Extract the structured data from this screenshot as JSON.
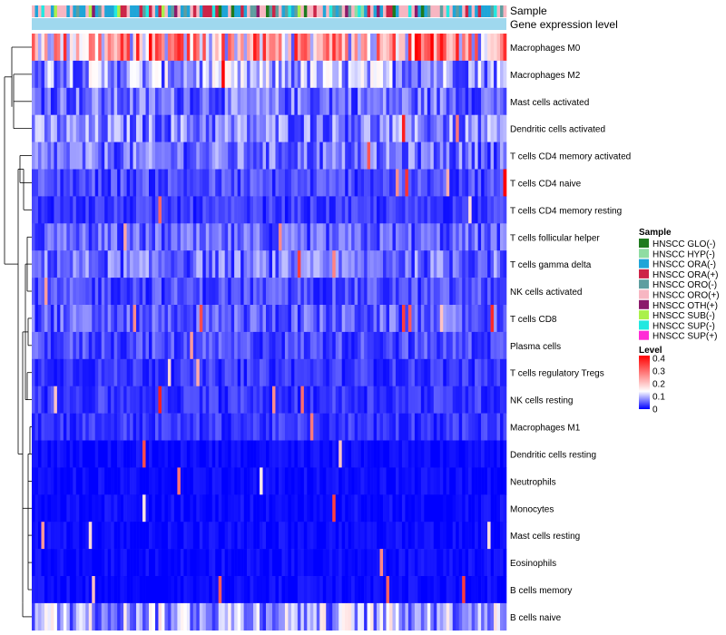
{
  "chart_data": {
    "type": "heatmap",
    "annotation_rows": [
      "Sample",
      "Gene expression level"
    ],
    "rows": [
      "Macrophages M0",
      "Macrophages M2",
      "Mast cells activated",
      "Dendritic cells activated",
      "T cells CD4 memory activated",
      "T cells CD4 naive",
      "T cells CD4 memory resting",
      "T cells follicular helper",
      "T cells gamma delta",
      "NK cells activated",
      "T cells CD8",
      "Plasma cells",
      "T cells regulatory  Tregs",
      "NK cells resting",
      "Macrophages M1",
      "Dendritic cells resting",
      "Neutrophils",
      "Monocytes",
      "Mast cells resting",
      "Eosinophils",
      "B cells memory",
      "B cells naive"
    ],
    "row_mean_level": [
      0.22,
      0.09,
      0.06,
      0.07,
      0.06,
      0.04,
      0.03,
      0.05,
      0.06,
      0.04,
      0.05,
      0.04,
      0.03,
      0.03,
      0.03,
      0.01,
      0.01,
      0.01,
      0.01,
      0.01,
      0.01,
      0.1
    ],
    "columns_approx": 150,
    "sample_legend": {
      "title": "Sample",
      "items": [
        {
          "label": "HNSCC GLO(-)",
          "color": "#1e7b1e"
        },
        {
          "label": "HNSCC HYP(-)",
          "color": "#8fdca2"
        },
        {
          "label": "HNSCC ORA(-)",
          "color": "#1fa5d8"
        },
        {
          "label": "HNSCC ORA(+)",
          "color": "#cc2447"
        },
        {
          "label": "HNSCC ORO(-)",
          "color": "#5f9ea0"
        },
        {
          "label": "HNSCC ORO(+)",
          "color": "#f7b6c2"
        },
        {
          "label": "HNSCC OTH(+)",
          "color": "#8b1a6b"
        },
        {
          "label": "HNSCC SUB(-)",
          "color": "#aaf04a"
        },
        {
          "label": "HNSCC SUP(-)",
          "color": "#22e8e0"
        },
        {
          "label": "HNSCC SUP(+)",
          "color": "#ff2bd6"
        }
      ]
    },
    "level_legend": {
      "title": "Level",
      "ticks": [
        "0.4",
        "0.3",
        "0.2",
        "0.1",
        "0"
      ],
      "range": [
        0,
        0.42
      ],
      "colors": [
        "#0000ff",
        "#ffffff",
        "#ff0000"
      ]
    },
    "gene_expression_bar_color": "#9fd8ee"
  }
}
